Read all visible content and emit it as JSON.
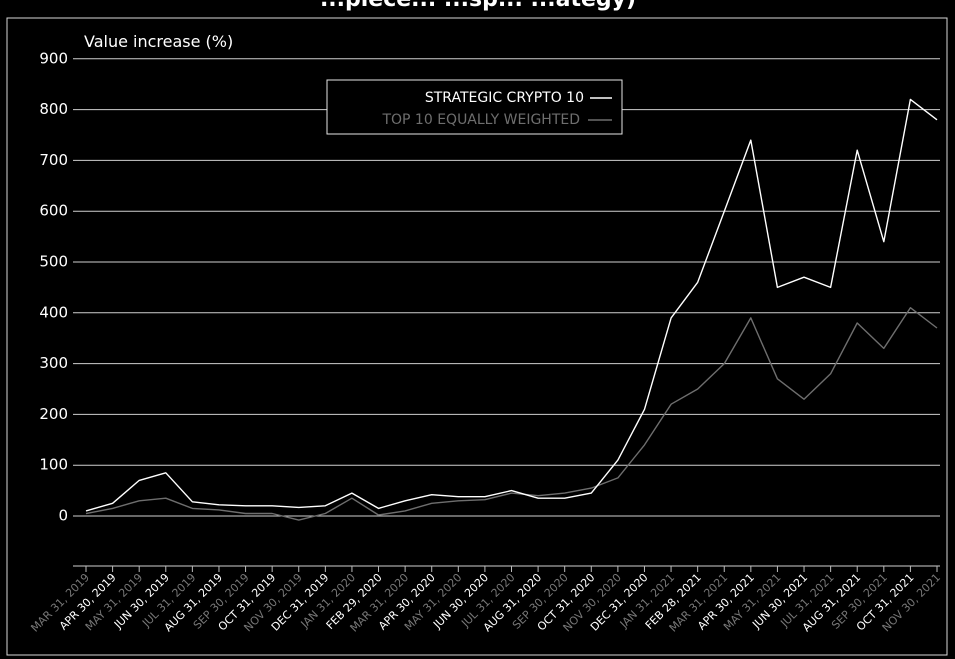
{
  "header": {
    "title_fragment": "...piece... ...sp... ...ategy)"
  },
  "colors": {
    "series_1": "#ffffff",
    "series_2": "#6e6e6e",
    "grid": "#cfcfcf",
    "background": "#000000"
  },
  "chart_data": {
    "type": "line",
    "ylabel": "Value increase (%)",
    "ylim": [
      -100,
      900
    ],
    "yticks": [
      0,
      100,
      200,
      300,
      400,
      500,
      600,
      700,
      800,
      900
    ],
    "grid": "horizontal",
    "legend_position": "top-center",
    "xtick_labels": [
      {
        "label": "MAR 31, 2019",
        "highlight": false
      },
      {
        "label": "APR 30, 2019",
        "highlight": true
      },
      {
        "label": "MAY 31, 2019",
        "highlight": false
      },
      {
        "label": "JUN 30, 2019",
        "highlight": true
      },
      {
        "label": "JUL 31, 2019",
        "highlight": false
      },
      {
        "label": "AUG 31, 2019",
        "highlight": true
      },
      {
        "label": "SEP 30, 2019",
        "highlight": false
      },
      {
        "label": "OCT 31, 2019",
        "highlight": true
      },
      {
        "label": "NOV 30, 2019",
        "highlight": false
      },
      {
        "label": "DEC 31, 2019",
        "highlight": true
      },
      {
        "label": "JAN 31, 2020",
        "highlight": false
      },
      {
        "label": "FEB 29, 2020",
        "highlight": true
      },
      {
        "label": "MAR 31, 2020",
        "highlight": false
      },
      {
        "label": "APR 30, 2020",
        "highlight": true
      },
      {
        "label": "MAY 31, 2020",
        "highlight": false
      },
      {
        "label": "JUN 30, 2020",
        "highlight": true
      },
      {
        "label": "JUL 31, 2020",
        "highlight": false
      },
      {
        "label": "AUG 31, 2020",
        "highlight": true
      },
      {
        "label": "SEP 30, 2020",
        "highlight": false
      },
      {
        "label": "OCT 31, 2020",
        "highlight": true
      },
      {
        "label": "NOV 30, 2020",
        "highlight": false
      },
      {
        "label": "DEC 31, 2020",
        "highlight": true
      },
      {
        "label": "JAN 31, 2021",
        "highlight": false
      },
      {
        "label": "FEB 28, 2021",
        "highlight": true
      },
      {
        "label": "MAR 31, 2021",
        "highlight": false
      },
      {
        "label": "APR 30, 2021",
        "highlight": true
      },
      {
        "label": "MAY 31, 2021",
        "highlight": false
      },
      {
        "label": "JUN 30, 2021",
        "highlight": true
      },
      {
        "label": "JUL 31, 2021",
        "highlight": false
      },
      {
        "label": "AUG 31, 2021",
        "highlight": true
      },
      {
        "label": "SEP 30, 2021",
        "highlight": false
      },
      {
        "label": "OCT 31, 2021",
        "highlight": true
      },
      {
        "label": "NOV 30, 2021",
        "highlight": false
      }
    ],
    "x": [
      "MAR 31, 2019",
      "APR 30, 2019",
      "MAY 31, 2019",
      "JUN 30, 2019",
      "JUL 31, 2019",
      "AUG 31, 2019",
      "SEP 30, 2019",
      "OCT 31, 2019",
      "NOV 30, 2019",
      "DEC 31, 2019",
      "JAN 31, 2020",
      "FEB 29, 2020",
      "MAR 31, 2020",
      "APR 30, 2020",
      "MAY 31, 2020",
      "JUN 30, 2020",
      "JUL 31, 2020",
      "AUG 31, 2020",
      "SEP 30, 2020",
      "OCT 31, 2020",
      "NOV 30, 2020",
      "DEC 31, 2020",
      "JAN 31, 2021",
      "FEB 28, 2021",
      "MAR 31, 2021",
      "APR 30, 2021",
      "MAY 31, 2021",
      "JUN 30, 2021",
      "JUL 31, 2021",
      "AUG 31, 2021",
      "SEP 30, 2021",
      "OCT 31, 2021",
      "NOV 30, 2021"
    ],
    "series": [
      {
        "name": "STRATEGIC CRYPTO 10",
        "color": "#ffffff",
        "values": [
          10,
          25,
          70,
          85,
          28,
          22,
          20,
          20,
          17,
          20,
          45,
          15,
          30,
          42,
          38,
          38,
          50,
          35,
          35,
          45,
          110,
          210,
          390,
          460,
          600,
          740,
          450,
          470,
          450,
          720,
          540,
          820,
          780
        ]
      },
      {
        "name": "TOP 10 EQUALLY WEIGHTED",
        "color": "#6e6e6e",
        "values": [
          5,
          15,
          30,
          35,
          15,
          12,
          5,
          5,
          -8,
          5,
          35,
          2,
          10,
          25,
          30,
          32,
          45,
          40,
          45,
          55,
          75,
          140,
          220,
          250,
          300,
          390,
          270,
          230,
          280,
          380,
          330,
          410,
          370
        ]
      }
    ]
  }
}
